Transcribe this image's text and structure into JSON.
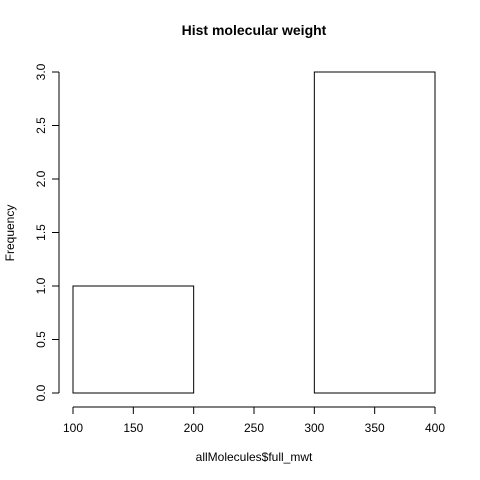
{
  "chart_data": {
    "type": "bar",
    "title": "Hist molecular weight",
    "xlabel": "allMolecules$full_mwt",
    "ylabel": "Frequency",
    "bins": [
      {
        "start": 100,
        "end": 200,
        "count": 1
      },
      {
        "start": 200,
        "end": 300,
        "count": 0
      },
      {
        "start": 300,
        "end": 400,
        "count": 3
      }
    ],
    "xlim": [
      100,
      400
    ],
    "ylim": [
      0,
      3
    ],
    "x_ticks": [
      100,
      150,
      200,
      250,
      300,
      350,
      400
    ],
    "x_tick_labels": [
      "100",
      "150",
      "200",
      "250",
      "300",
      "350",
      "400"
    ],
    "y_ticks": [
      0.0,
      0.5,
      1.0,
      1.5,
      2.0,
      2.5,
      3.0
    ],
    "y_tick_labels": [
      "0.0",
      "0.5",
      "1.0",
      "1.5",
      "2.0",
      "2.5",
      "3.0"
    ],
    "grid": false,
    "bar_fill": "#ffffff",
    "bar_stroke": "#000000"
  }
}
